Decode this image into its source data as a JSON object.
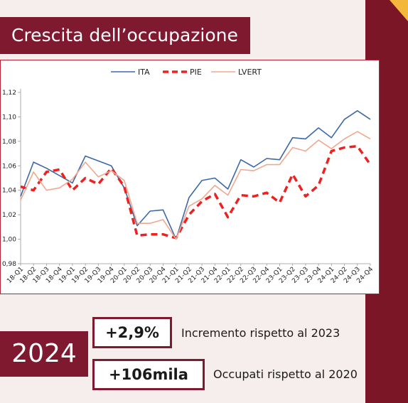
{
  "slide": {
    "title": "Crescita dell’occupazione",
    "year": "2024",
    "stats": [
      {
        "value": "+2,9%",
        "description": "Incremento rispetto al 2023"
      },
      {
        "value": "+106mila",
        "description": "Occupati rispetto al 2020"
      }
    ],
    "colors": {
      "brand": "#7f1930",
      "accent": "#f3b73c"
    }
  },
  "chart_data": {
    "type": "line",
    "categories": [
      "18-Q1",
      "18-Q2",
      "18-Q3",
      "18-Q4",
      "19-Q1",
      "19-Q2",
      "19-Q3",
      "19-Q4",
      "20-Q1",
      "20-Q2",
      "20-Q3",
      "20-Q4",
      "21-Q1",
      "21-Q2",
      "21-Q3",
      "21-Q4",
      "22-Q1",
      "22-Q2",
      "22-Q3",
      "22-Q4",
      "23-Q1",
      "23-Q2",
      "23-Q3",
      "23-Q4",
      "24-Q1",
      "24-Q2",
      "24-Q3",
      "24-Q4"
    ],
    "yticks": [
      "0,98",
      "1,00",
      "1,02",
      "1,04",
      "1,06",
      "1,08",
      "1,10",
      "1,12"
    ],
    "ylim": [
      0.98,
      1.12
    ],
    "legend_position": "top",
    "grid": false,
    "series": [
      {
        "name": "ITA",
        "color": "#3d68a8",
        "dash": "solid",
        "values": [
          1.035,
          1.063,
          1.058,
          1.052,
          1.046,
          1.068,
          1.064,
          1.06,
          1.042,
          1.011,
          1.023,
          1.024,
          1.0,
          1.034,
          1.048,
          1.05,
          1.041,
          1.065,
          1.059,
          1.066,
          1.065,
          1.083,
          1.082,
          1.091,
          1.083,
          1.098,
          1.105,
          1.098
        ]
      },
      {
        "name": "PIE",
        "color": "#ee2020",
        "dash": "dashed",
        "values": [
          1.043,
          1.04,
          1.055,
          1.057,
          1.04,
          1.05,
          1.045,
          1.058,
          1.043,
          1.003,
          1.004,
          1.004,
          1.001,
          1.02,
          1.031,
          1.037,
          1.018,
          1.036,
          1.035,
          1.038,
          1.03,
          1.053,
          1.035,
          1.044,
          1.072,
          1.075,
          1.076,
          1.061
        ]
      },
      {
        "name": "LVERT",
        "color": "#f0a890",
        "dash": "solid",
        "values": [
          1.032,
          1.055,
          1.04,
          1.042,
          1.049,
          1.063,
          1.051,
          1.056,
          1.048,
          1.013,
          1.013,
          1.016,
          1.0,
          1.027,
          1.033,
          1.044,
          1.036,
          1.057,
          1.056,
          1.061,
          1.061,
          1.075,
          1.072,
          1.081,
          1.074,
          1.082,
          1.088,
          1.082
        ]
      }
    ]
  }
}
